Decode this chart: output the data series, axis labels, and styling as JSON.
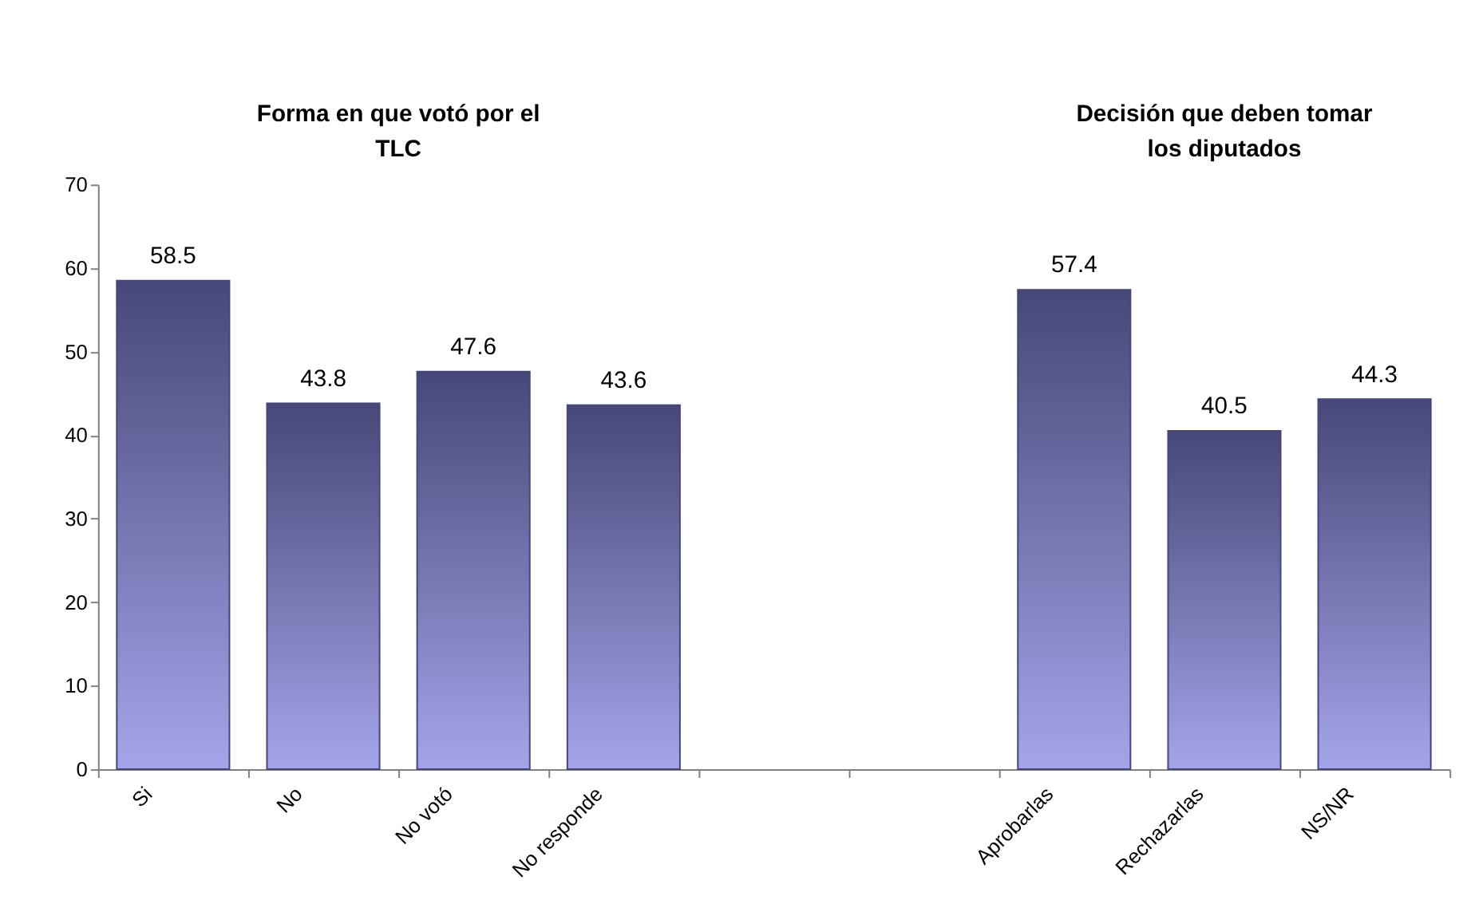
{
  "chart_data": {
    "type": "bar",
    "categories": [
      "Si",
      "No",
      "No votó",
      "No responde",
      null,
      null,
      "Aprobarlas",
      "Rechazarlas",
      "NS/NR"
    ],
    "values": [
      58.5,
      43.8,
      47.6,
      43.6,
      null,
      null,
      57.4,
      40.5,
      44.3
    ],
    "color": "#474778",
    "ylim": [
      0,
      70
    ],
    "yticks": [
      0,
      10,
      20,
      30,
      40,
      50,
      60,
      70
    ],
    "grid": false,
    "data_labels": true,
    "annotations": [
      "Forma en que votó por el TLC",
      "Decisión que deben tomar los diputados"
    ]
  }
}
